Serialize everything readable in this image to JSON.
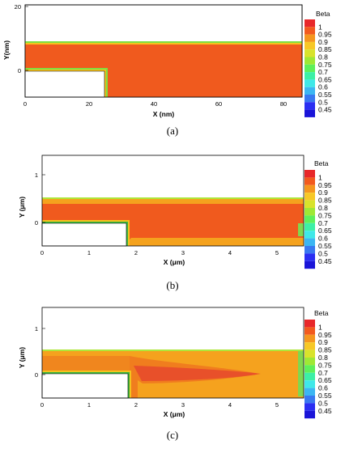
{
  "legend": {
    "title": "Beta",
    "levels": [
      "1",
      "0.95",
      "0.9",
      "0.85",
      "0.8",
      "0.75",
      "0.7",
      "0.65",
      "0.6",
      "0.55",
      "0.5",
      "0.45"
    ],
    "colors": [
      "#e8282a",
      "#f25a1e",
      "#f5961e",
      "#f7c826",
      "#d8e32c",
      "#9fe835",
      "#5ef05a",
      "#3cf0a6",
      "#3fe8e8",
      "#3cb6f2",
      "#3978f0",
      "#2a2ef2",
      "#1a14d8"
    ]
  },
  "panels": [
    {
      "caption": "(a)",
      "xlabel": "X (nm)",
      "ylabel": "Y(nm)",
      "xticks": [
        "0",
        "20",
        "40",
        "60",
        "80"
      ],
      "yticks": [
        "20",
        "0"
      ]
    },
    {
      "caption": "(b)",
      "xlabel": "X (μm)",
      "ylabel": "Y (μm)",
      "xticks": [
        "0",
        "1",
        "2",
        "3",
        "4",
        "5"
      ],
      "yticks": [
        "1",
        "0"
      ]
    },
    {
      "caption": "(c)",
      "xlabel": "X (μm)",
      "ylabel": "Y (μm)",
      "xticks": [
        "0",
        "1",
        "2",
        "3",
        "4",
        "5"
      ],
      "yticks": [
        "1",
        "0"
      ]
    }
  ]
}
